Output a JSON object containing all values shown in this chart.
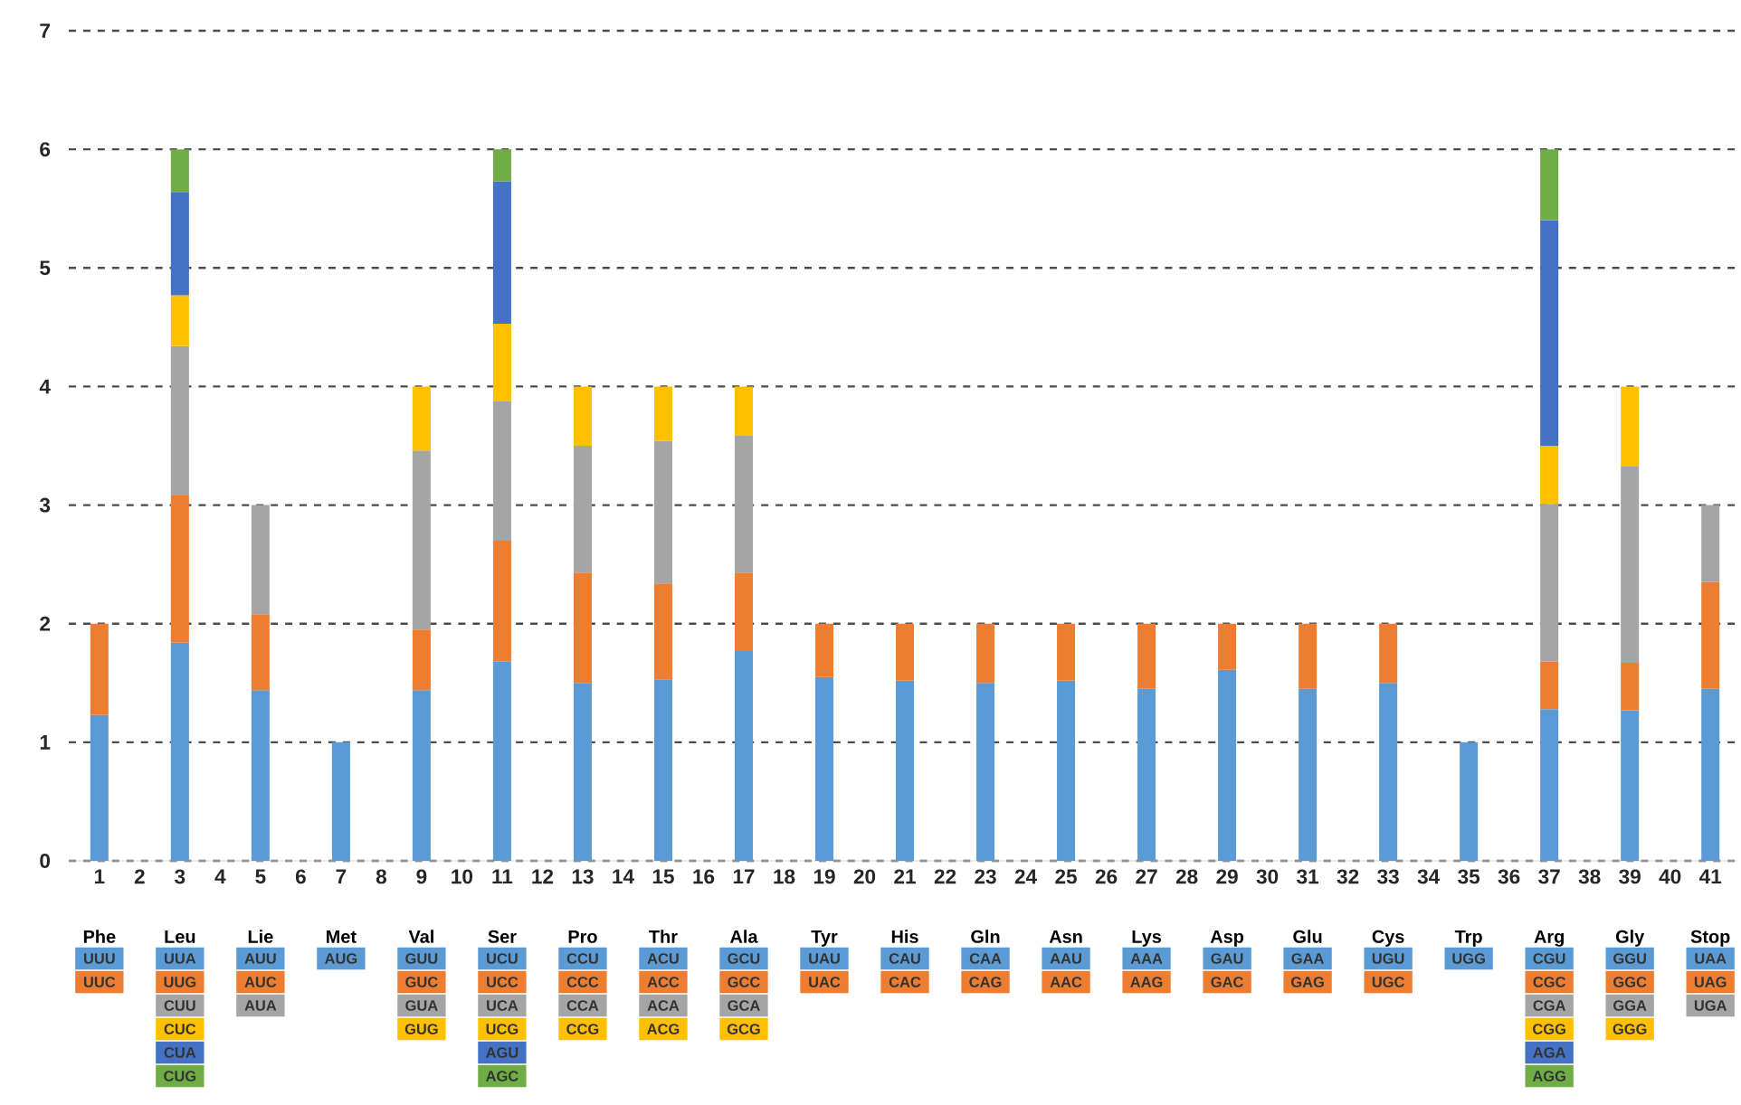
{
  "chart_data": {
    "type": "bar",
    "stacked": true,
    "grid": "y",
    "ylim": [
      0,
      7
    ],
    "yticks": [
      0,
      1,
      2,
      3,
      4,
      5,
      6,
      7
    ],
    "categories": [
      "1",
      "2",
      "3",
      "4",
      "5",
      "6",
      "7",
      "8",
      "9",
      "10",
      "11",
      "12",
      "13",
      "14",
      "15",
      "16",
      "17",
      "18",
      "19",
      "20",
      "21",
      "22",
      "23",
      "24",
      "25",
      "26",
      "27",
      "28",
      "29",
      "30",
      "31",
      "32",
      "33",
      "34",
      "35",
      "36",
      "37",
      "38",
      "39",
      "40",
      "41"
    ],
    "series": [
      {
        "color": "#5b9bd5",
        "values": [
          1.23,
          null,
          1.84,
          null,
          1.44,
          null,
          1,
          null,
          1.44,
          null,
          1.68,
          null,
          1.5,
          null,
          1.53,
          null,
          1.77,
          null,
          1.55,
          null,
          1.52,
          null,
          1.5,
          null,
          1.52,
          null,
          1.45,
          null,
          1.61,
          null,
          1.45,
          null,
          1.5,
          null,
          1,
          null,
          1.28,
          null,
          1.27,
          null,
          1.45
        ]
      },
      {
        "color": "#ed7d31",
        "values": [
          0.77,
          null,
          1.24,
          null,
          0.64,
          null,
          null,
          null,
          0.51,
          null,
          1.02,
          null,
          0.93,
          null,
          0.81,
          null,
          0.66,
          null,
          0.45,
          null,
          0.48,
          null,
          0.5,
          null,
          0.48,
          null,
          0.55,
          null,
          0.39,
          null,
          0.55,
          null,
          0.5,
          null,
          null,
          null,
          0.4,
          null,
          0.4,
          null,
          0.9
        ]
      },
      {
        "color": "#a5a5a5",
        "values": [
          null,
          null,
          1.26,
          null,
          0.92,
          null,
          null,
          null,
          1.51,
          null,
          1.18,
          null,
          1.07,
          null,
          1.2,
          null,
          1.16,
          null,
          null,
          null,
          null,
          null,
          null,
          null,
          null,
          null,
          null,
          null,
          null,
          null,
          null,
          null,
          null,
          null,
          null,
          null,
          1.33,
          null,
          1.66,
          null,
          0.65
        ]
      },
      {
        "color": "#ffc000",
        "values": [
          null,
          null,
          0.43,
          null,
          null,
          null,
          null,
          null,
          0.54,
          null,
          0.65,
          null,
          0.5,
          null,
          0.46,
          null,
          0.41,
          null,
          null,
          null,
          null,
          null,
          null,
          null,
          null,
          null,
          null,
          null,
          null,
          null,
          null,
          null,
          null,
          null,
          null,
          null,
          0.49,
          null,
          0.67,
          null,
          null
        ]
      },
      {
        "color": "#4472c4",
        "values": [
          null,
          null,
          0.87,
          null,
          null,
          null,
          null,
          null,
          null,
          null,
          1.2,
          null,
          null,
          null,
          null,
          null,
          null,
          null,
          null,
          null,
          null,
          null,
          null,
          null,
          null,
          null,
          null,
          null,
          null,
          null,
          null,
          null,
          null,
          null,
          null,
          null,
          1.9,
          null,
          null,
          null,
          null
        ]
      },
      {
        "color": "#70ad47",
        "values": [
          null,
          null,
          0.36,
          null,
          null,
          null,
          null,
          null,
          null,
          null,
          0.27,
          null,
          null,
          null,
          null,
          null,
          null,
          null,
          null,
          null,
          null,
          null,
          null,
          null,
          null,
          null,
          null,
          null,
          null,
          null,
          null,
          null,
          null,
          null,
          null,
          null,
          0.6,
          null,
          null,
          null,
          null
        ]
      }
    ],
    "annotations": [
      "Phe",
      "UUU",
      "UUC",
      "Leu",
      "UUA",
      "UUG",
      "CUU",
      "CUC",
      "CUA",
      "CUG",
      "Lie",
      "AUU",
      "AUC",
      "AUA",
      "Met",
      "AUG",
      "Val",
      "GUU",
      "GUC",
      "GUA",
      "GUG",
      "Ser",
      "UCU",
      "UCC",
      "UCA",
      "UCG",
      "AGU",
      "AGC",
      "Pro",
      "CCU",
      "CCC",
      "CCA",
      "CCG",
      "Thr",
      "ACU",
      "ACC",
      "ACA",
      "ACG",
      "Ala",
      "GCU",
      "GCC",
      "GCA",
      "GCG",
      "Tyr",
      "UAU",
      "UAC",
      "His",
      "CAU",
      "CAC",
      "Gln",
      "CAA",
      "CAG",
      "Asn",
      "AAU",
      "AAC",
      "Lys",
      "AAA",
      "AAG",
      "Asp",
      "GAU",
      "GAC",
      "Glu",
      "GAA",
      "GAG",
      "Cys",
      "UGU",
      "UGC",
      "Trp",
      "UGG",
      "Arg",
      "CGU",
      "CGC",
      "CGA",
      "CGG",
      "AGA",
      "AGG",
      "Gly",
      "GGU",
      "GGC",
      "GGA",
      "GGG",
      "Stop",
      "UAA",
      "UAG",
      "UGA"
    ]
  }
}
